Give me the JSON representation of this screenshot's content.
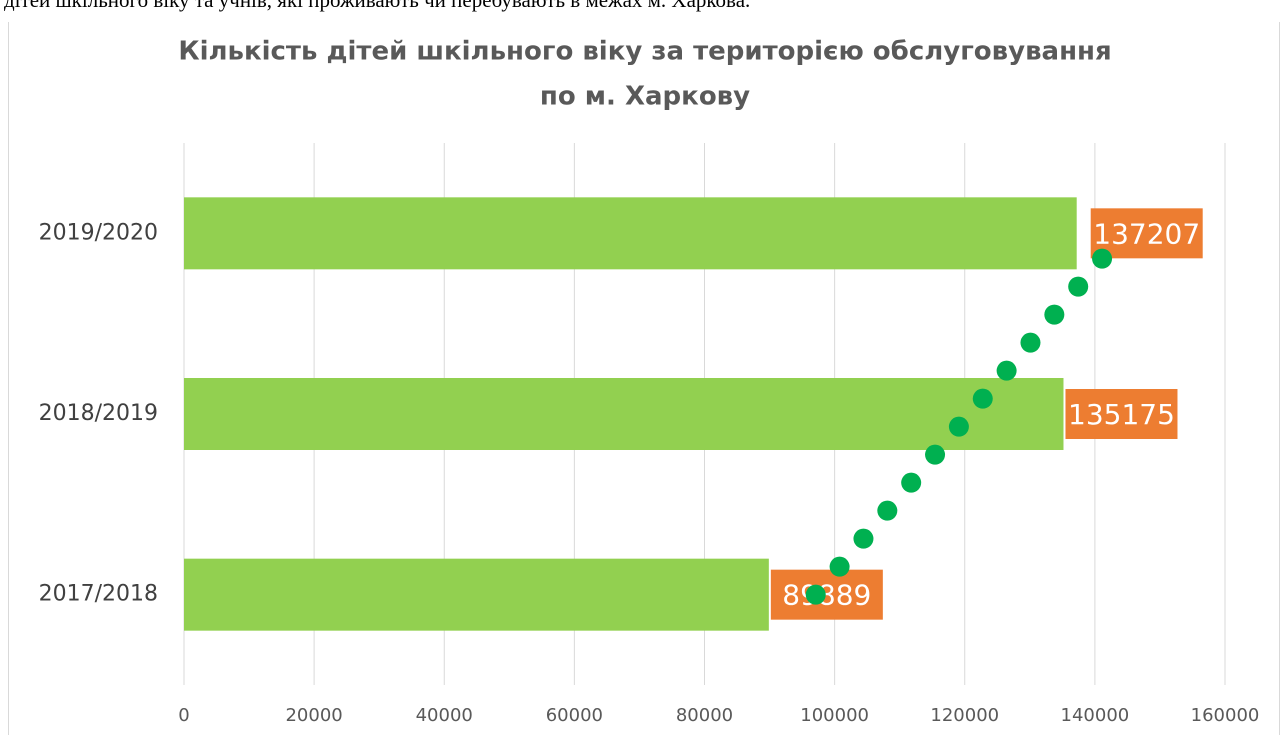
{
  "page_text": "дітей шкільного віку та учнів, які проживають чи перебувають в межах м. Харкова.",
  "chart_data": {
    "type": "hbar",
    "title": [
      "Кількість дітей шкільного віку за територією обслуговування",
      "по м. Харкову"
    ],
    "categories": [
      "2017/2018",
      "2018/2019",
      "2019/2020"
    ],
    "values": [
      89889,
      135175,
      137207
    ],
    "color": "#92d050",
    "label_color": "#ed7d31",
    "xlim": [
      0,
      160000
    ],
    "xticks": [
      0,
      20000,
      40000,
      60000,
      80000,
      100000,
      120000,
      140000,
      160000
    ],
    "grid": true,
    "trendline": "linear",
    "trendline_color": "#00b050"
  }
}
